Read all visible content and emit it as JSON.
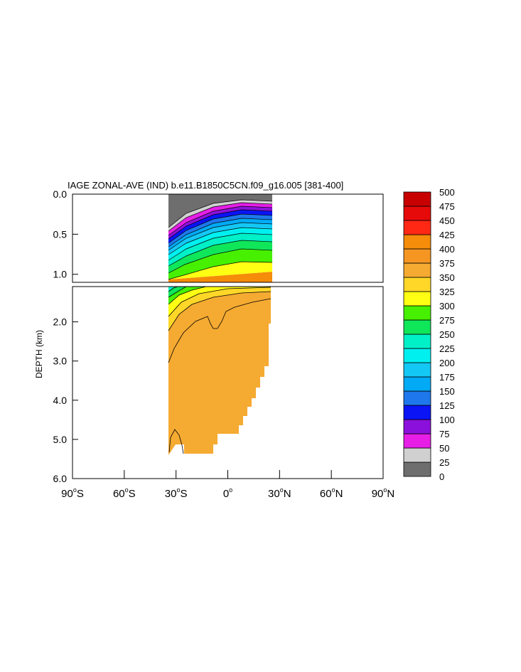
{
  "chart_data": {
    "type": "heatmap",
    "title": "IAGE ZONAL-AVE (IND) b.e11.B1850C5CN.f09_g16.005 [381-400]",
    "ylabel": "DEPTH (km)",
    "xlabel": "",
    "xlim": [
      -90,
      90
    ],
    "ylim_upper_panel": [
      0.0,
      1.1
    ],
    "ylim_lower_panel": [
      1.1,
      6.0
    ],
    "x_ticks": [
      -90,
      -60,
      -30,
      0,
      30,
      60,
      90
    ],
    "x_tick_labels": [
      {
        "num": "90",
        "hem": "S"
      },
      {
        "num": "60",
        "hem": "S"
      },
      {
        "num": "30",
        "hem": "S"
      },
      {
        "num": "0",
        "hem": ""
      },
      {
        "num": "30",
        "hem": "N"
      },
      {
        "num": "60",
        "hem": "N"
      },
      {
        "num": "90",
        "hem": "N"
      }
    ],
    "y_ticks_upper": [
      {
        "v": 0.0,
        "label": "0.0"
      },
      {
        "v": 0.5,
        "label": "0.5"
      },
      {
        "v": 1.0,
        "label": "1.0"
      }
    ],
    "y_ticks_lower": [
      {
        "v": 2.0,
        "label": "2.0"
      },
      {
        "v": 3.0,
        "label": "3.0"
      },
      {
        "v": 4.0,
        "label": "4.0"
      },
      {
        "v": 5.0,
        "label": "5.0"
      },
      {
        "v": 6.0,
        "label": "6.0"
      }
    ],
    "colorbar": {
      "levels": [
        "0",
        "25",
        "50",
        "75",
        "100",
        "125",
        "150",
        "175",
        "200",
        "225",
        "250",
        "275",
        "300",
        "325",
        "350",
        "375",
        "400",
        "425",
        "450",
        "475",
        "500"
      ],
      "colors": [
        "#6e6e6e",
        "#d0d0d0",
        "#e61ee6",
        "#8c10dc",
        "#0a14f5",
        "#1e78eb",
        "#00aaf5",
        "#14c8f5",
        "#00f0f0",
        "#00f0c8",
        "#10e65a",
        "#46f000",
        "#ffff14",
        "#ffd728",
        "#f5aa32",
        "#f59623",
        "#f58c0a",
        "#ff2814",
        "#e60a0a",
        "#c80000"
      ]
    },
    "field": {
      "lat_range": [
        -34,
        25
      ],
      "surface_layer_label": "0-25",
      "deep_interior_range": "375-400",
      "upper_ocean_range": "25-350"
    }
  }
}
